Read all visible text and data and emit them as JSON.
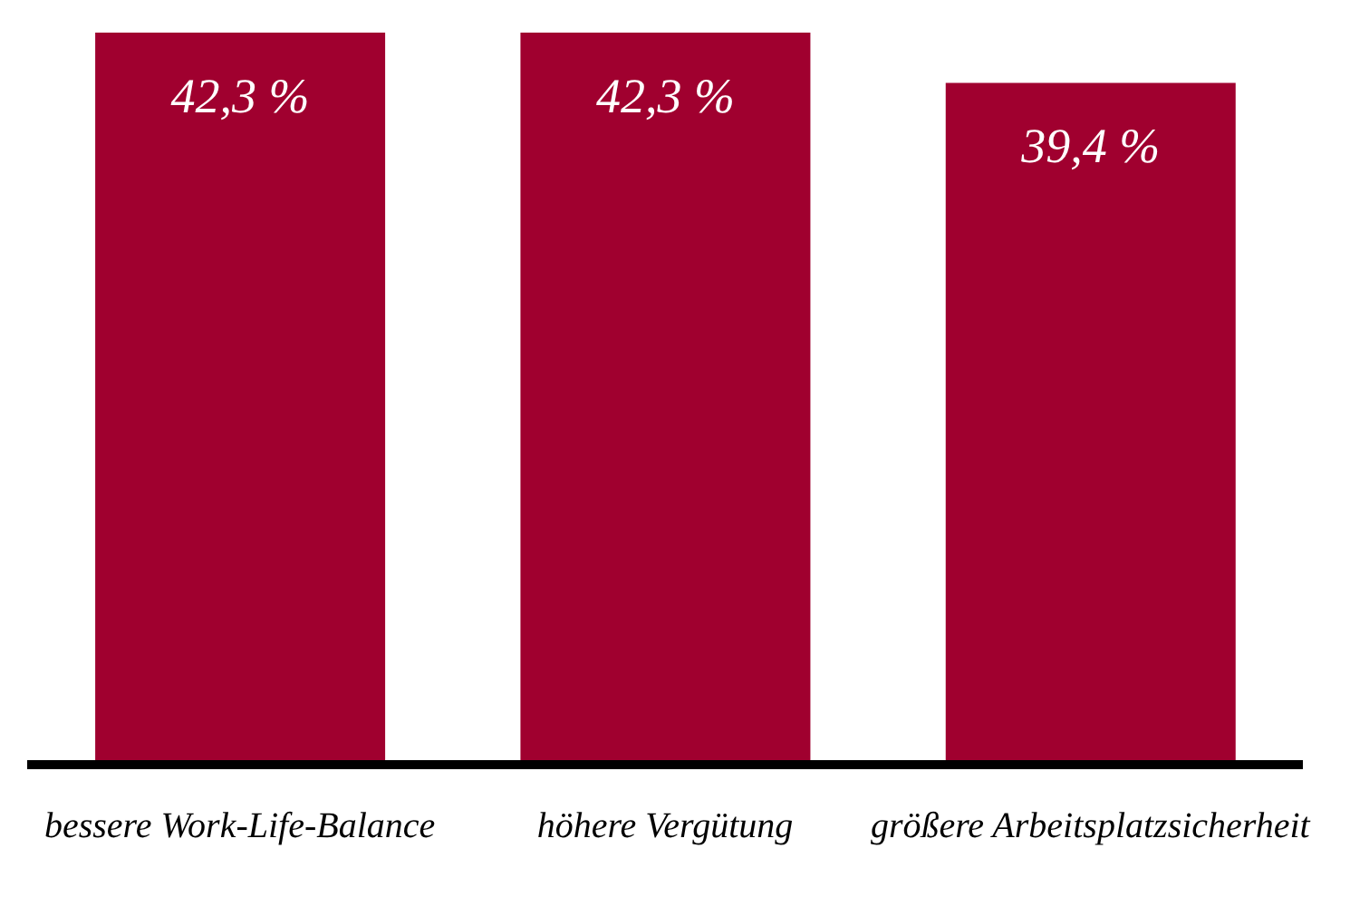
{
  "chart_data": {
    "type": "bar",
    "categories": [
      "bessere Work-Life-Balance",
      "höhere Vergütung",
      "größere Arbeitsplatzsicherheit"
    ],
    "values": [
      42.3,
      42.3,
      39.4
    ],
    "value_labels": [
      "42,3 %",
      "42,3 %",
      "39,4 %"
    ],
    "color": "#a0002f",
    "grid": false,
    "legend": false
  }
}
